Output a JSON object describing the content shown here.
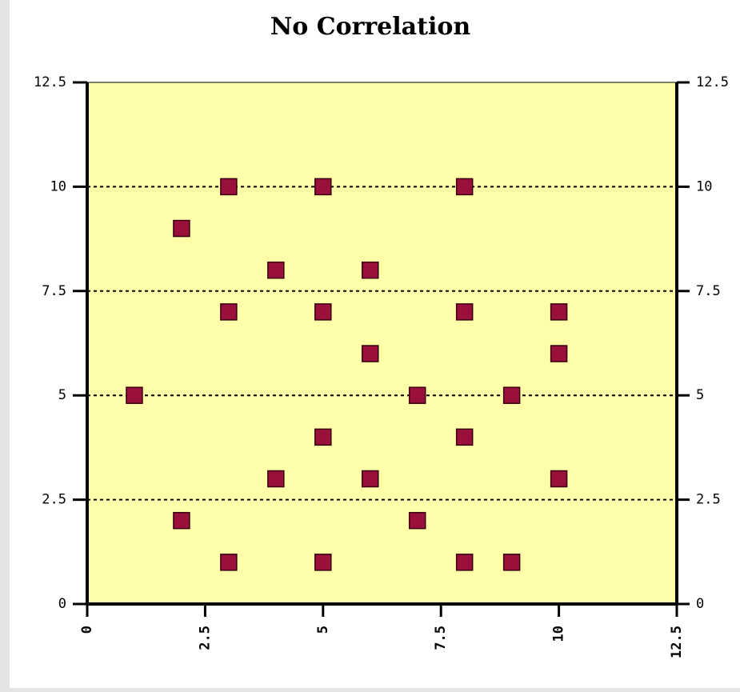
{
  "chart_data": {
    "type": "scatter",
    "title": "No Correlation",
    "series": [
      {
        "name": null,
        "color": "#99103a",
        "x": [
          3,
          5,
          8,
          2,
          4,
          6,
          3,
          5,
          8,
          10,
          6,
          10,
          1,
          7,
          9,
          5,
          8,
          4,
          6,
          10,
          2,
          7,
          3,
          5,
          8,
          9
        ],
        "values": [
          10,
          10,
          10,
          9,
          8,
          8,
          7,
          7,
          7,
          7,
          6,
          6,
          5,
          5,
          5,
          4,
          4,
          3,
          3,
          3,
          2,
          2,
          1,
          1,
          1,
          1
        ]
      }
    ],
    "xlim": [
      0,
      12.5
    ],
    "xticks": [
      0,
      2.5,
      5,
      7.5,
      10,
      12.5
    ],
    "ylim": [
      0,
      12.5
    ],
    "yticks": [
      0,
      2.5,
      5,
      7.5,
      10,
      12.5
    ],
    "y2lim": [
      0,
      12.5
    ],
    "y2ticks": [
      0,
      2.5,
      5,
      7.5,
      10,
      12.5
    ],
    "grid": true,
    "background": "#ffffaa"
  }
}
